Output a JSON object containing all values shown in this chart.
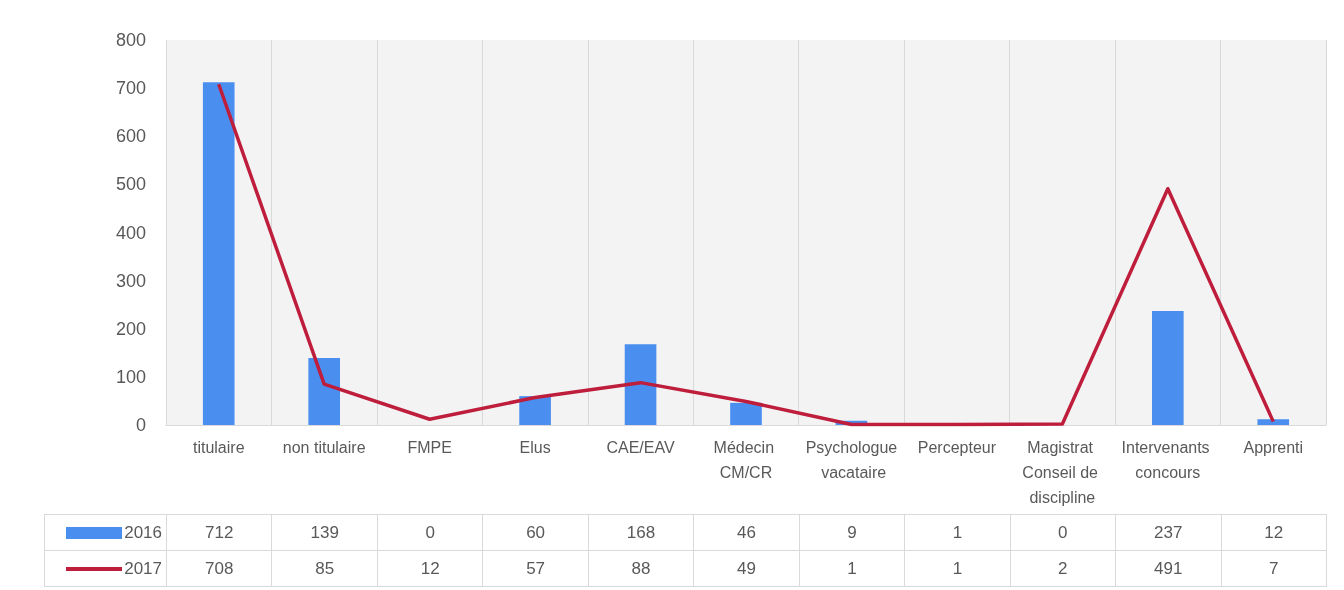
{
  "chart_data": {
    "type": "bar",
    "categories": [
      "titulaire",
      "non titulaire",
      "FMPE",
      "Elus",
      "CAE/EAV",
      "Médecin CM/CR",
      "Psychologue vacataire",
      "Percepteur",
      "Magistrat Conseil de discipline",
      "Intervenants concours",
      "Apprenti"
    ],
    "series": [
      {
        "name": "2016",
        "color": "#4a8ff0",
        "values": [
          712,
          139,
          0,
          60,
          168,
          46,
          9,
          1,
          0,
          237,
          12
        ]
      },
      {
        "name": "2017",
        "type": "line",
        "color": "#be1e3c",
        "values": [
          708,
          85,
          12,
          57,
          88,
          49,
          1,
          1,
          2,
          491,
          7
        ]
      }
    ],
    "ylim": [
      0,
      800
    ],
    "yticks": [
      0,
      100,
      200,
      300,
      400,
      500,
      600,
      700,
      800
    ],
    "grid": "x",
    "legend": "bottom",
    "data_labels": true,
    "marker": "none"
  }
}
